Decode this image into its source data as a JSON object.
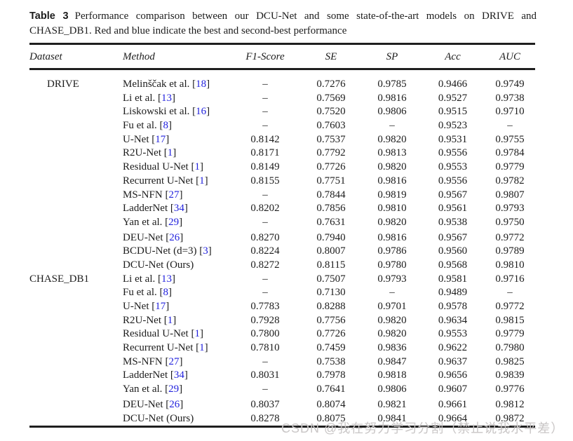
{
  "caption": {
    "label": "Table 3",
    "text": "Performance comparison between our DCU-Net and some state-of-the-art models on DRIVE and CHASE_DB1. Red and blue indicate the best and second-best performance"
  },
  "table": {
    "columns": [
      "Dataset",
      "Method",
      "F1-Score",
      "SE",
      "SP",
      "Acc",
      "AUC"
    ],
    "rows": [
      {
        "dataset": "DRIVE",
        "indent": true,
        "method": "Melinščak et al.",
        "cite": "18",
        "f1": "–",
        "se": "0.7276",
        "sp": "0.9785",
        "acc": "0.9466",
        "auc": "0.9749"
      },
      {
        "dataset": "",
        "method": "Li et al.",
        "cite": "13",
        "f1": "–",
        "se": "0.7569",
        "sp": "0.9816",
        "acc": "0.9527",
        "auc": "0.9738"
      },
      {
        "dataset": "",
        "method": "Liskowski et al.",
        "cite": "16",
        "f1": "–",
        "se": "0.7520",
        "sp": "0.9806",
        "acc": "0.9515",
        "auc": "0.9710"
      },
      {
        "dataset": "",
        "method": "Fu et al.",
        "cite": "8",
        "f1": "–",
        "se": "0.7603",
        "sp": "–",
        "acc": "0.9523",
        "auc": "–"
      },
      {
        "dataset": "",
        "method": "U-Net",
        "cite": "17",
        "f1": "0.8142",
        "se": "0.7537",
        "sp": "0.9820",
        "acc": "0.9531",
        "auc": "0.9755"
      },
      {
        "dataset": "",
        "method": "R2U-Net",
        "cite": "1",
        "f1": "0.8171",
        "se": "0.7792",
        "sp": "0.9813",
        "acc": "0.9556",
        "auc": "0.9784"
      },
      {
        "dataset": "",
        "method": "Residual U-Net",
        "cite": "1",
        "f1": "0.8149",
        "se": "0.7726",
        "sp": "0.9820",
        "acc": "0.9553",
        "auc": "0.9779"
      },
      {
        "dataset": "",
        "method": "Recurrent U-Net",
        "cite": "1",
        "f1": "0.8155",
        "se": "0.7751",
        "sp": "0.9816",
        "acc": "0.9556",
        "auc": "0.9782"
      },
      {
        "dataset": "",
        "method": "MS-NFN",
        "cite": "27",
        "f1": "–",
        "se": "0.7844",
        "sp": "0.9819",
        "acc": "0.9567",
        "auc": "0.9807"
      },
      {
        "dataset": "",
        "method": "LadderNet",
        "cite": "34",
        "f1": "0.8202",
        "se": "0.7856",
        "sp": "0.9810",
        "acc": "0.9561",
        "auc": "0.9793"
      },
      {
        "dataset": "",
        "method": "Yan et al.",
        "cite": "29",
        "f1": "–",
        "se": "0.7631",
        "sp": "0.9820",
        "acc": "0.9538",
        "auc": "0.9750"
      },
      {
        "dataset": "",
        "gap": true,
        "method": "DEU-Net",
        "cite": "26",
        "f1": "0.8270",
        "se": "0.7940",
        "sp": "0.9816",
        "acc": "0.9567",
        "auc": "0.9772"
      },
      {
        "dataset": "",
        "method": "BCDU-Net (d=3)",
        "cite": "3",
        "f1": "0.8224",
        "se": "0.8007",
        "sp": "0.9786",
        "acc": "0.9560",
        "auc": "0.9789"
      },
      {
        "dataset": "",
        "method": "DCU-Net (Ours)",
        "cite": null,
        "f1": "0.8272",
        "se": "0.8115",
        "sp": "0.9780",
        "acc": "0.9568",
        "auc": "0.9810"
      },
      {
        "dataset": "CHASE_DB1",
        "method": "Li et al.",
        "cite": "13",
        "f1": "–",
        "se": "0.7507",
        "sp": "0.9793",
        "acc": "0.9581",
        "auc": "0.9716"
      },
      {
        "dataset": "",
        "method": "Fu et al.",
        "cite": "8",
        "f1": "–",
        "se": "0.7130",
        "sp": "–",
        "acc": "0.9489",
        "auc": "–"
      },
      {
        "dataset": "",
        "method": "U-Net",
        "cite": "17",
        "f1": "0.7783",
        "se": "0.8288",
        "sp": "0.9701",
        "acc": "0.9578",
        "auc": "0.9772"
      },
      {
        "dataset": "",
        "method": "R2U-Net",
        "cite": "1",
        "f1": "0.7928",
        "se": "0.7756",
        "sp": "0.9820",
        "acc": "0.9634",
        "auc": "0.9815"
      },
      {
        "dataset": "",
        "method": "Residual U-Net",
        "cite": "1",
        "f1": "0.7800",
        "se": "0.7726",
        "sp": "0.9820",
        "acc": "0.9553",
        "auc": "0.9779"
      },
      {
        "dataset": "",
        "method": "Recurrent U-Net",
        "cite": "1",
        "f1": "0.7810",
        "se": "0.7459",
        "sp": "0.9836",
        "acc": "0.9622",
        "auc": "0.7980"
      },
      {
        "dataset": "",
        "method": "MS-NFN",
        "cite": "27",
        "f1": "–",
        "se": "0.7538",
        "sp": "0.9847",
        "acc": "0.9637",
        "auc": "0.9825"
      },
      {
        "dataset": "",
        "method": "LadderNet",
        "cite": "34",
        "f1": "0.8031",
        "se": "0.7978",
        "sp": "0.9818",
        "acc": "0.9656",
        "auc": "0.9839"
      },
      {
        "dataset": "",
        "method": "Yan et al.",
        "cite": "29",
        "f1": "–",
        "se": "0.7641",
        "sp": "0.9806",
        "acc": "0.9607",
        "auc": "0.9776"
      },
      {
        "dataset": "",
        "gap": true,
        "method": "DEU-Net",
        "cite": "26",
        "f1": "0.8037",
        "se": "0.8074",
        "sp": "0.9821",
        "acc": "0.9661",
        "auc": "0.9812"
      },
      {
        "dataset": "",
        "method": "DCU-Net (Ours)",
        "cite": null,
        "f1": "0.8278",
        "se": "0.8075",
        "sp": "0.9841",
        "acc": "0.9664",
        "auc": "0.9872"
      }
    ]
  },
  "watermark": {
    "text": "CSDN @我在努力学习分割（禁止说我水平差）"
  },
  "colors": {
    "citation_blue": "#2222dd",
    "text": "#1c1c1c",
    "rule": "#1f1f1f",
    "watermark_gray": "#c9c6c6"
  }
}
